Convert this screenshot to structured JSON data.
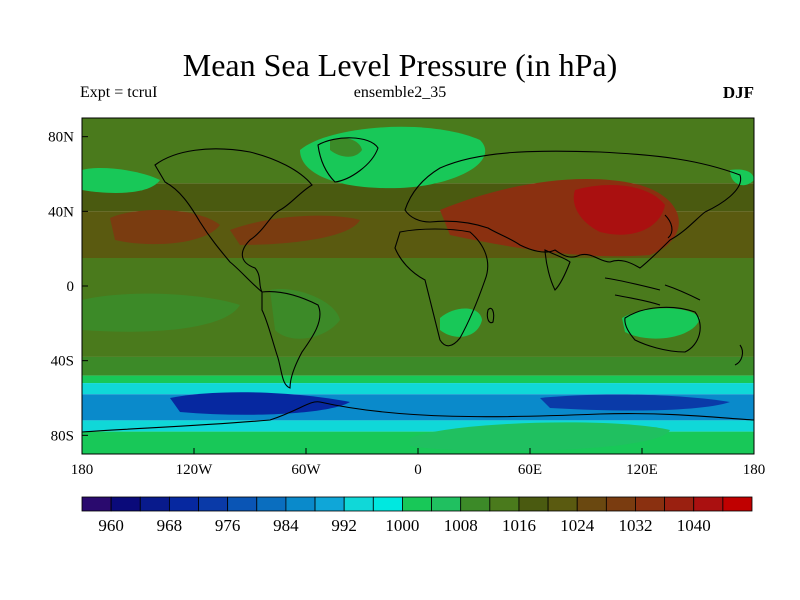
{
  "title": "Mean Sea Level Pressure (in hPa)",
  "subtitle_left": "Expt = tcruI",
  "subtitle_center": "ensemble2_35",
  "subtitle_right": "DJF",
  "chart_data": {
    "type": "heatmap",
    "x_ticks": [
      "180",
      "120W",
      "60W",
      "0",
      "60E",
      "120E",
      "180"
    ],
    "y_ticks": [
      "80N",
      "40N",
      "0",
      "40S",
      "80S"
    ],
    "xlim": [
      -180,
      180
    ],
    "ylim": [
      -90,
      90
    ],
    "colorbar": {
      "labels": [
        "960",
        "968",
        "976",
        "984",
        "992",
        "1000",
        "1008",
        "1016",
        "1024",
        "1032",
        "1040"
      ],
      "colors": [
        "#2a0a6e",
        "#0a0a7a",
        "#081a8c",
        "#0628a0",
        "#0a3aa8",
        "#0a55b5",
        "#0a6ebf",
        "#0a8acb",
        "#0fa6d8",
        "#10d8d8",
        "#00e8e0",
        "#18c858",
        "#20c060",
        "#3c8a28",
        "#4a7a1c",
        "#4a5a10",
        "#5a5a10",
        "#6a4810",
        "#7a3c10",
        "#8a3010",
        "#9a2010",
        "#aa1010",
        "#c00000"
      ]
    },
    "zones": [
      {
        "lat_from": 90,
        "lat_to": 55,
        "level": 1012
      },
      {
        "lat_from": 55,
        "lat_to": 40,
        "level": 1016
      },
      {
        "lat_from": 40,
        "lat_to": 15,
        "level": 1020
      },
      {
        "lat_from": 15,
        "lat_to": -38,
        "level": 1012
      },
      {
        "lat_from": -38,
        "lat_to": -48,
        "level": 1008
      },
      {
        "lat_from": -48,
        "lat_to": -52,
        "level": 1000
      },
      {
        "lat_from": -52,
        "lat_to": -58,
        "level": 992
      },
      {
        "lat_from": -58,
        "lat_to": -72,
        "level": 984
      },
      {
        "lat_from": -72,
        "lat_to": -78,
        "level": 992
      },
      {
        "lat_from": -78,
        "lat_to": -90,
        "level": 1000
      }
    ]
  }
}
